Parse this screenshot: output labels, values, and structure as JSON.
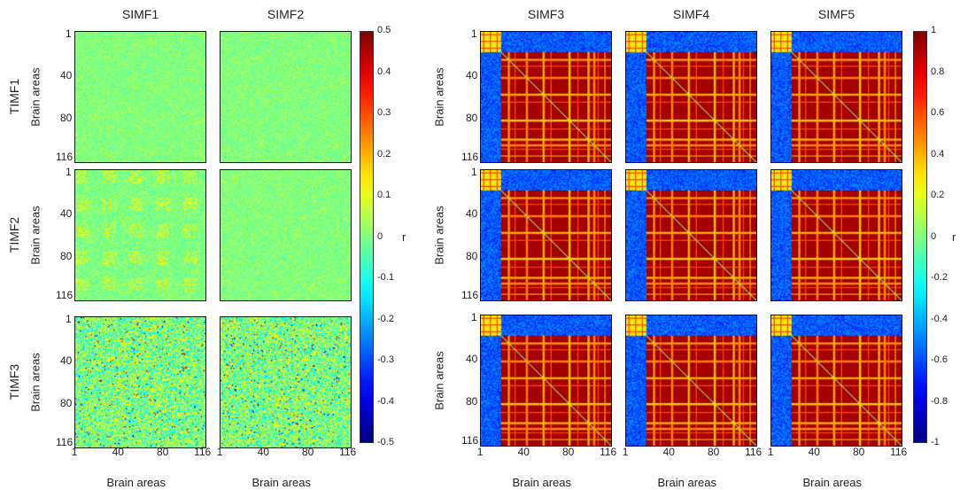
{
  "chart_data": {
    "type": "heatmap",
    "title": "",
    "groups": [
      {
        "name": "left",
        "columns": [
          "SIMF1",
          "SIMF2"
        ],
        "rows": [
          "TIMF1",
          "TIMF2",
          "TIMF3"
        ],
        "colorbar": {
          "range": [
            -0.5,
            0.5
          ],
          "ticks": [
            "0.5",
            "0.4",
            "0.3",
            "0.2",
            "0.1",
            "0",
            "-0.1",
            "-0.2",
            "-0.3",
            "-0.4",
            "-0.5"
          ],
          "label": "r"
        },
        "panel_summary": [
          [
            "weak near-zero correlations",
            "weak near-zero correlations"
          ],
          [
            "weak positive structure",
            "weak near-zero correlations"
          ],
          [
            "noisy mixed correlations",
            "noisy mixed correlations"
          ]
        ]
      },
      {
        "name": "right",
        "columns": [
          "SIMF3",
          "SIMF4",
          "SIMF5"
        ],
        "rows": [
          "TIMF1",
          "TIMF2",
          "TIMF3"
        ],
        "colorbar": {
          "range": [
            -1,
            1
          ],
          "ticks": [
            "1",
            "0.8",
            "0.6",
            "0.4",
            "0.2",
            "0",
            "-0.2",
            "-0.4",
            "-0.6",
            "-0.8",
            "-1"
          ],
          "label": "r"
        },
        "panel_summary": [
          [
            "strong positive block",
            "strong positive block",
            "strong positive block"
          ],
          [
            "strong positive block",
            "strong positive block",
            "strong positive block"
          ],
          [
            "strong positive block",
            "strong positive block",
            "strong positive block"
          ]
        ]
      }
    ],
    "axis_label": "Brain areas",
    "x_ticks": [
      "1",
      "40",
      "80",
      "116"
    ],
    "y_ticks": [
      "1",
      "40",
      "80",
      "116"
    ],
    "n_areas": 116
  }
}
